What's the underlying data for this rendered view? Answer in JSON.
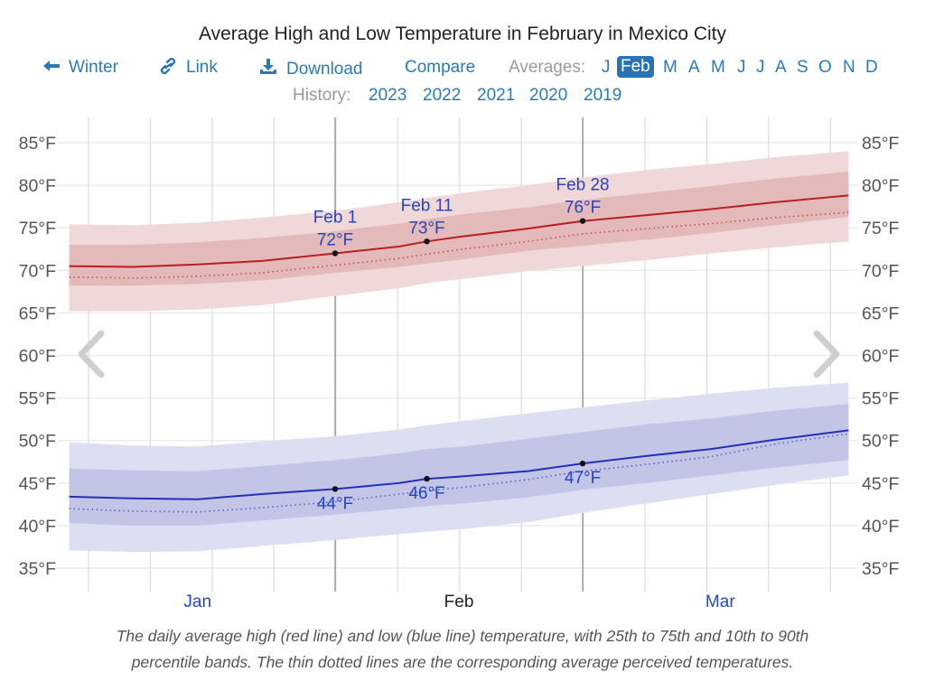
{
  "title": "Average High and Low Temperature in February in Mexico City",
  "nav": {
    "back_label": "Winter",
    "link_label": "Link",
    "download_label": "Download",
    "compare_label": "Compare",
    "averages_label": "Averages:",
    "months": [
      "J",
      "Feb",
      "M",
      "A",
      "M",
      "J",
      "J",
      "A",
      "S",
      "O",
      "N",
      "D"
    ],
    "selected_month": "Feb",
    "selected_color": "#2a72b5",
    "link_color": "#2a7ab8"
  },
  "history": {
    "label": "History:",
    "years": [
      "2023",
      "2022",
      "2021",
      "2020",
      "2019"
    ]
  },
  "caption_line1": "The daily average high (red line) and low (blue line) temperature, with 25th to 75th and 10th to 90th",
  "caption_line2": "percentile bands. The thin dotted lines are the corresponding average perceived temperatures.",
  "icons": {
    "back": "arrow-left-icon",
    "link": "link-icon",
    "download": "download-icon",
    "prev": "chevron-left-icon",
    "next": "chevron-right-icon"
  },
  "chart_data": {
    "type": "line",
    "title": "Average High and Low Temperature in February in Mexico City",
    "xlabel": "",
    "ylabel": "",
    "x_unit": "days relative to Feb 1",
    "x_range": [
      -29,
      56
    ],
    "ylim": [
      32,
      88
    ],
    "y_ticks": [
      35,
      40,
      45,
      50,
      55,
      60,
      65,
      70,
      75,
      80,
      85
    ],
    "y_tick_labels": [
      "35°F",
      "40°F",
      "45°F",
      "50°F",
      "55°F",
      "60°F",
      "65°F",
      "70°F",
      "75°F",
      "80°F",
      "85°F"
    ],
    "x_month_labels": [
      {
        "label": "Jan",
        "x": -15,
        "color": "#2446c4"
      },
      {
        "label": "Feb",
        "x": 13.5,
        "color": "#222222"
      },
      {
        "label": "Mar",
        "x": 42,
        "color": "#2446c4"
      }
    ],
    "grid": true,
    "x": [
      -29,
      -22,
      -15,
      -8,
      0,
      7,
      10,
      14,
      21,
      27,
      34,
      41,
      48,
      56
    ],
    "series": [
      {
        "name": "Average high",
        "color": "#b82020",
        "values": [
          70.5,
          70.4,
          70.7,
          71.1,
          72.0,
          72.8,
          73.4,
          74.0,
          74.9,
          75.8,
          76.5,
          77.2,
          78.0,
          78.8
        ],
        "p25": [
          68.2,
          68.2,
          68.4,
          68.8,
          69.7,
          70.4,
          70.8,
          71.3,
          72.3,
          72.9,
          73.6,
          74.4,
          75.3,
          76.3
        ],
        "p75": [
          73.0,
          73.0,
          73.3,
          73.8,
          74.6,
          75.5,
          76.0,
          76.6,
          77.4,
          78.3,
          79.1,
          79.9,
          80.8,
          81.6
        ],
        "p10": [
          65.2,
          65.2,
          65.4,
          65.9,
          67.0,
          67.9,
          68.5,
          69.0,
          69.9,
          70.5,
          71.2,
          72.0,
          72.7,
          73.4
        ],
        "p90": [
          75.4,
          75.3,
          75.6,
          76.2,
          77.0,
          78.0,
          78.5,
          79.1,
          80.0,
          80.9,
          81.8,
          82.5,
          83.3,
          84.0
        ],
        "perceived": [
          69.2,
          69.1,
          69.3,
          69.7,
          70.6,
          71.4,
          71.9,
          72.5,
          73.4,
          74.3,
          74.9,
          75.5,
          76.2,
          76.8
        ]
      },
      {
        "name": "Average low",
        "color": "#2430b8",
        "values": [
          43.4,
          43.2,
          43.1,
          43.7,
          44.3,
          45.0,
          45.5,
          45.8,
          46.4,
          47.3,
          48.2,
          49.0,
          50.1,
          51.2
        ],
        "p25": [
          40.3,
          40.0,
          40.0,
          40.6,
          41.3,
          42.0,
          42.3,
          42.6,
          43.3,
          44.2,
          45.0,
          45.9,
          46.8,
          47.7
        ],
        "p75": [
          46.7,
          46.5,
          46.4,
          47.0,
          47.7,
          48.5,
          49.0,
          49.3,
          50.2,
          51.0,
          51.9,
          52.6,
          53.5,
          54.3
        ],
        "p10": [
          37.1,
          36.9,
          37.0,
          37.6,
          38.3,
          39.0,
          39.3,
          39.6,
          40.4,
          41.5,
          42.6,
          43.7,
          44.8,
          45.9
        ],
        "p90": [
          49.8,
          49.4,
          49.3,
          49.9,
          50.5,
          51.3,
          51.8,
          52.3,
          53.2,
          53.9,
          54.7,
          55.5,
          56.2,
          56.8
        ],
        "perceived": [
          42.0,
          41.7,
          41.6,
          42.1,
          42.8,
          43.7,
          44.1,
          44.5,
          45.4,
          46.4,
          47.2,
          48.1,
          49.6,
          50.8
        ]
      }
    ],
    "annotations": [
      {
        "series": "high",
        "x": 0,
        "y": 72.0,
        "date": "Feb 1",
        "text": "72°F"
      },
      {
        "series": "high",
        "x": 10,
        "y": 73.4,
        "date": "Feb 11",
        "text": "73°F"
      },
      {
        "series": "high",
        "x": 27,
        "y": 75.8,
        "date": "Feb 28",
        "text": "76°F"
      },
      {
        "series": "low",
        "x": 0,
        "y": 44.3,
        "date": "",
        "text": "44°F"
      },
      {
        "series": "low",
        "x": 10,
        "y": 45.5,
        "date": "",
        "text": "46°F"
      },
      {
        "series": "low",
        "x": 27,
        "y": 47.3,
        "date": "",
        "text": "47°F"
      }
    ],
    "month_boundaries": [
      0,
      27
    ],
    "legend": "none"
  }
}
